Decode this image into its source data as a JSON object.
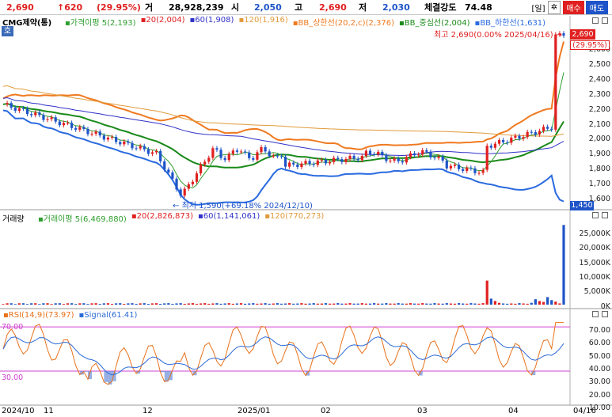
{
  "header": {
    "price": "2,690",
    "change": "↑620",
    "change_pct": "(29.95%)",
    "volume_label": "거",
    "volume": "28,928,239",
    "open_label": "시",
    "open": "2,050",
    "high_label": "고",
    "high": "2,690",
    "low_label": "저",
    "low": "2,030",
    "strength_label": "체결강도",
    "strength": "74.48",
    "period_btn": "[일]",
    "settings_icon": "gear-icon",
    "buy_btn": "매수",
    "sell_btn": "매도",
    "sub_label": "호"
  },
  "legend_price": {
    "name": "CMG제약(통)",
    "items": [
      {
        "label": "가격이평 5(2,193)",
        "color": "#2e9e2e"
      },
      {
        "label": "20(2,004)",
        "color": "#e02020"
      },
      {
        "label": "60(1,908)",
        "color": "#3030c8"
      },
      {
        "label": "120(1,916)",
        "color": "#e09a3a"
      },
      {
        "label": "BB_상한선(20,2,c)(2,376)",
        "color": "#f07a20"
      },
      {
        "label": "BB_중심선(2,004)",
        "color": "#1a8a1a"
      },
      {
        "label": "BB_하한선(1,631)",
        "color": "#2a6ae0"
      }
    ]
  },
  "price_axis": [
    "2,600",
    "2,500",
    "2,400",
    "2,300",
    "2,200",
    "2,100",
    "2,000",
    "1,900",
    "1,800",
    "1,700",
    "1,600"
  ],
  "price_tags": {
    "current": "2,690",
    "current_pct": "(29.95%)",
    "bottom": "1,450"
  },
  "annotations": {
    "high": "최고 2,690(0.00% 2025/04/16)",
    "low": "최저 1,590(+69.18% 2024/12/10)"
  },
  "legend_volume": {
    "name": "거래량",
    "items": [
      {
        "label": "거래이평 5(6,469,880)",
        "color": "#2e9e2e"
      },
      {
        "label": "20(2,826,873)",
        "color": "#e02020"
      },
      {
        "label": "60(1,141,061)",
        "color": "#3030c8"
      },
      {
        "label": "120(770,273)",
        "color": "#e09a3a"
      }
    ]
  },
  "volume_axis": [
    "25,000K",
    "20,000K",
    "15,000K",
    "10,000K",
    "5,000K",
    "0K"
  ],
  "legend_rsi": {
    "items": [
      {
        "label": "RSI(14,9)(73.97)",
        "color": "#e8721c"
      },
      {
        "label": "Signal(61.41)",
        "color": "#2b6ad8"
      }
    ]
  },
  "rsi_axis": [
    "70.00",
    "60.00",
    "50.00",
    "40.00",
    "30.00",
    "20.00",
    "10.00"
  ],
  "rsi_levels": {
    "upper": "70.00",
    "lower": "30.00"
  },
  "time_axis": [
    "2024/10",
    "11",
    "12",
    "2025/01",
    "02",
    "03",
    "04"
  ],
  "time_axis_right": "04/16",
  "colors": {
    "up": "#e02020",
    "down": "#1e54c8",
    "bb_upper": "#f07a20",
    "bb_lower": "#2a6ae0",
    "bb_mid": "#1a8a1a",
    "rsi": "#e8721c",
    "signal": "#2b6ad8",
    "rsi_band": "#d040d0"
  }
}
